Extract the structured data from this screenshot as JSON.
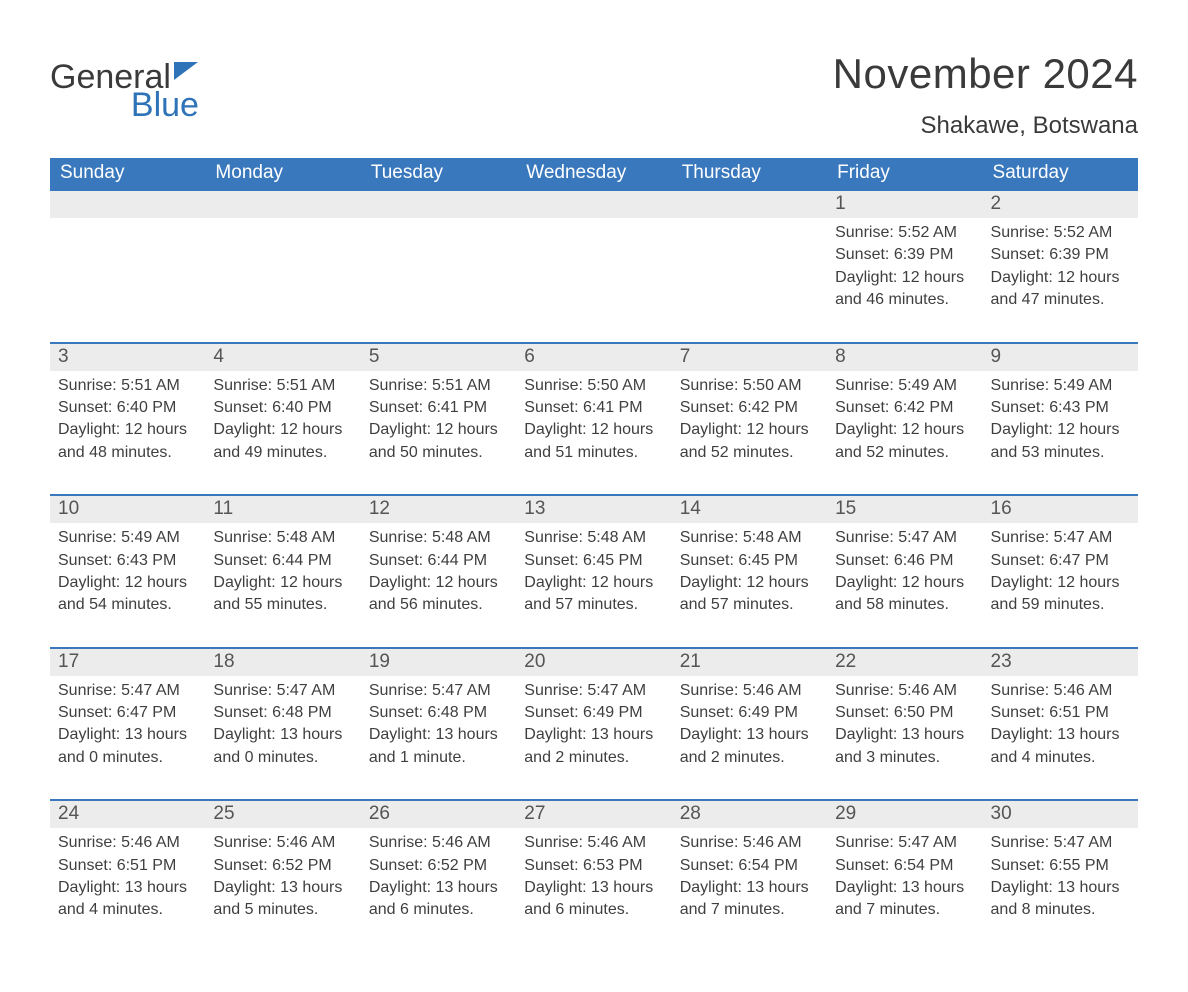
{
  "logo": {
    "word1": "General",
    "word2": "Blue",
    "flag_color": "#2e73b8",
    "text_gray": "#3a3a3a"
  },
  "title": "November 2024",
  "location": "Shakawe, Botswana",
  "colors": {
    "header_bg": "#3a78bd",
    "header_text": "#ffffff",
    "daynum_bg": "#ececec",
    "daynum_text": "#555555",
    "body_text": "#3f3f3f",
    "row_border": "#3a78bd",
    "page_bg": "#ffffff"
  },
  "typography": {
    "title_fontsize": 42,
    "location_fontsize": 24,
    "dow_fontsize": 19,
    "daynum_fontsize": 19,
    "body_fontsize": 16,
    "font_family": "Arial"
  },
  "days_of_week": [
    "Sunday",
    "Monday",
    "Tuesday",
    "Wednesday",
    "Thursday",
    "Friday",
    "Saturday"
  ],
  "weeks": [
    [
      {
        "empty": true
      },
      {
        "empty": true
      },
      {
        "empty": true
      },
      {
        "empty": true
      },
      {
        "empty": true
      },
      {
        "num": "1",
        "sunrise": "Sunrise: 5:52 AM",
        "sunset": "Sunset: 6:39 PM",
        "daylight": "Daylight: 12 hours and 46 minutes."
      },
      {
        "num": "2",
        "sunrise": "Sunrise: 5:52 AM",
        "sunset": "Sunset: 6:39 PM",
        "daylight": "Daylight: 12 hours and 47 minutes."
      }
    ],
    [
      {
        "num": "3",
        "sunrise": "Sunrise: 5:51 AM",
        "sunset": "Sunset: 6:40 PM",
        "daylight": "Daylight: 12 hours and 48 minutes."
      },
      {
        "num": "4",
        "sunrise": "Sunrise: 5:51 AM",
        "sunset": "Sunset: 6:40 PM",
        "daylight": "Daylight: 12 hours and 49 minutes."
      },
      {
        "num": "5",
        "sunrise": "Sunrise: 5:51 AM",
        "sunset": "Sunset: 6:41 PM",
        "daylight": "Daylight: 12 hours and 50 minutes."
      },
      {
        "num": "6",
        "sunrise": "Sunrise: 5:50 AM",
        "sunset": "Sunset: 6:41 PM",
        "daylight": "Daylight: 12 hours and 51 minutes."
      },
      {
        "num": "7",
        "sunrise": "Sunrise: 5:50 AM",
        "sunset": "Sunset: 6:42 PM",
        "daylight": "Daylight: 12 hours and 52 minutes."
      },
      {
        "num": "8",
        "sunrise": "Sunrise: 5:49 AM",
        "sunset": "Sunset: 6:42 PM",
        "daylight": "Daylight: 12 hours and 52 minutes."
      },
      {
        "num": "9",
        "sunrise": "Sunrise: 5:49 AM",
        "sunset": "Sunset: 6:43 PM",
        "daylight": "Daylight: 12 hours and 53 minutes."
      }
    ],
    [
      {
        "num": "10",
        "sunrise": "Sunrise: 5:49 AM",
        "sunset": "Sunset: 6:43 PM",
        "daylight": "Daylight: 12 hours and 54 minutes."
      },
      {
        "num": "11",
        "sunrise": "Sunrise: 5:48 AM",
        "sunset": "Sunset: 6:44 PM",
        "daylight": "Daylight: 12 hours and 55 minutes."
      },
      {
        "num": "12",
        "sunrise": "Sunrise: 5:48 AM",
        "sunset": "Sunset: 6:44 PM",
        "daylight": "Daylight: 12 hours and 56 minutes."
      },
      {
        "num": "13",
        "sunrise": "Sunrise: 5:48 AM",
        "sunset": "Sunset: 6:45 PM",
        "daylight": "Daylight: 12 hours and 57 minutes."
      },
      {
        "num": "14",
        "sunrise": "Sunrise: 5:48 AM",
        "sunset": "Sunset: 6:45 PM",
        "daylight": "Daylight: 12 hours and 57 minutes."
      },
      {
        "num": "15",
        "sunrise": "Sunrise: 5:47 AM",
        "sunset": "Sunset: 6:46 PM",
        "daylight": "Daylight: 12 hours and 58 minutes."
      },
      {
        "num": "16",
        "sunrise": "Sunrise: 5:47 AM",
        "sunset": "Sunset: 6:47 PM",
        "daylight": "Daylight: 12 hours and 59 minutes."
      }
    ],
    [
      {
        "num": "17",
        "sunrise": "Sunrise: 5:47 AM",
        "sunset": "Sunset: 6:47 PM",
        "daylight": "Daylight: 13 hours and 0 minutes."
      },
      {
        "num": "18",
        "sunrise": "Sunrise: 5:47 AM",
        "sunset": "Sunset: 6:48 PM",
        "daylight": "Daylight: 13 hours and 0 minutes."
      },
      {
        "num": "19",
        "sunrise": "Sunrise: 5:47 AM",
        "sunset": "Sunset: 6:48 PM",
        "daylight": "Daylight: 13 hours and 1 minute."
      },
      {
        "num": "20",
        "sunrise": "Sunrise: 5:47 AM",
        "sunset": "Sunset: 6:49 PM",
        "daylight": "Daylight: 13 hours and 2 minutes."
      },
      {
        "num": "21",
        "sunrise": "Sunrise: 5:46 AM",
        "sunset": "Sunset: 6:49 PM",
        "daylight": "Daylight: 13 hours and 2 minutes."
      },
      {
        "num": "22",
        "sunrise": "Sunrise: 5:46 AM",
        "sunset": "Sunset: 6:50 PM",
        "daylight": "Daylight: 13 hours and 3 minutes."
      },
      {
        "num": "23",
        "sunrise": "Sunrise: 5:46 AM",
        "sunset": "Sunset: 6:51 PM",
        "daylight": "Daylight: 13 hours and 4 minutes."
      }
    ],
    [
      {
        "num": "24",
        "sunrise": "Sunrise: 5:46 AM",
        "sunset": "Sunset: 6:51 PM",
        "daylight": "Daylight: 13 hours and 4 minutes."
      },
      {
        "num": "25",
        "sunrise": "Sunrise: 5:46 AM",
        "sunset": "Sunset: 6:52 PM",
        "daylight": "Daylight: 13 hours and 5 minutes."
      },
      {
        "num": "26",
        "sunrise": "Sunrise: 5:46 AM",
        "sunset": "Sunset: 6:52 PM",
        "daylight": "Daylight: 13 hours and 6 minutes."
      },
      {
        "num": "27",
        "sunrise": "Sunrise: 5:46 AM",
        "sunset": "Sunset: 6:53 PM",
        "daylight": "Daylight: 13 hours and 6 minutes."
      },
      {
        "num": "28",
        "sunrise": "Sunrise: 5:46 AM",
        "sunset": "Sunset: 6:54 PM",
        "daylight": "Daylight: 13 hours and 7 minutes."
      },
      {
        "num": "29",
        "sunrise": "Sunrise: 5:47 AM",
        "sunset": "Sunset: 6:54 PM",
        "daylight": "Daylight: 13 hours and 7 minutes."
      },
      {
        "num": "30",
        "sunrise": "Sunrise: 5:47 AM",
        "sunset": "Sunset: 6:55 PM",
        "daylight": "Daylight: 13 hours and 8 minutes."
      }
    ]
  ]
}
